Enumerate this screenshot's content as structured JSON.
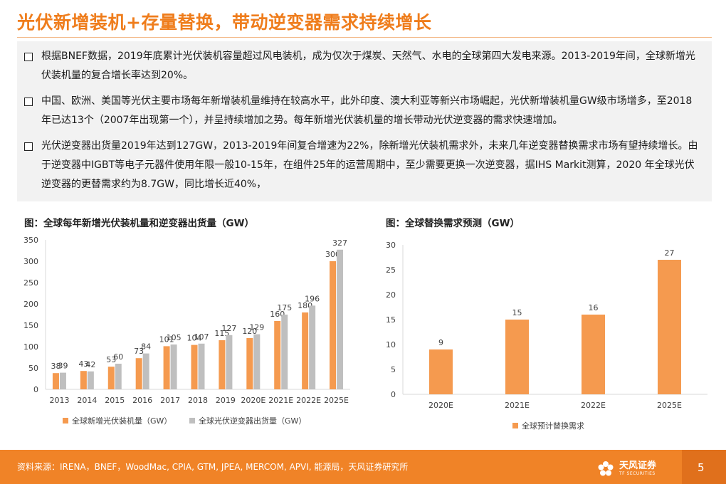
{
  "slide": {
    "title": "光伏新增装机+存量替换，带动逆变器需求持续增长",
    "bullets": [
      "根据BNEF数据，2019年底累计光伏装机容量超过风电装机，成为仅次于煤炭、天然气、水电的全球第四大发电来源。2013-2019年间，全球新增光伏装机量的复合增长率达到20%。",
      "中国、欧洲、美国等光伏主要市场每年新增装机量维持在较高水平，此外印度、澳大利亚等新兴市场崛起，光伏新增装机量GW级市场增多，至2018年已达13个（2007年出现第一个），并呈持续增加之势。每年新增光伏装机量的增长带动光伏逆变器的需求快速增加。",
      "光伏逆变器出货量2019年达到127GW，2013-2019年间复合增速为22%，除新增光伏装机需求外，未来几年逆变器替换需求市场有望持续增长。由于逆变器中IGBT等电子元器件使用年限一般10-15年，在组件25年的运营周期中，至少需要更换一次逆变器，据IHS Markit测算，2020 年全球光伏逆变器的更替需求约为8.7GW，同比增长近40%，"
    ],
    "source": "资料来源：IRENA，BNEF，WoodMac, CPIA, GTM, JPEA, MERCOM, APVI, 能源局，天风证券研究所",
    "logo_name": "天风证券",
    "logo_sub": "TF SECURITIES",
    "page_number": "5"
  },
  "colors": {
    "accent": "#ef7d1c",
    "series_orange": "#f59a4f",
    "series_gray": "#bfbfbf",
    "footer": "#f08327"
  },
  "chart_data": [
    {
      "type": "bar",
      "title": "图：全球每年新增光伏装机量和逆变器出货量（GW）",
      "categories": [
        "2013",
        "2014",
        "2015",
        "2016",
        "2017",
        "2018",
        "2019",
        "2020E",
        "2021E",
        "2022E",
        "2025E"
      ],
      "series": [
        {
          "name": "全球新增光伏装机量（GW）",
          "values": [
            38,
            43,
            53,
            73,
            101,
            104,
            115,
            120,
            160,
            180,
            300
          ],
          "labels": [
            "38",
            "43",
            "53",
            "73",
            "101",
            "104",
            "115",
            "120",
            "160",
            "180",
            "300"
          ]
        },
        {
          "name": "全球光伏逆变器出货量（GW）",
          "values": [
            39,
            42,
            60,
            84,
            105,
            107,
            127,
            129,
            175,
            196,
            327
          ],
          "labels": [
            "39",
            "42",
            "60",
            "84",
            "105",
            "107",
            "127",
            "129",
            "175",
            "196",
            "327"
          ]
        }
      ],
      "ylim": [
        0,
        350
      ],
      "yticks": [
        "0",
        "50",
        "100",
        "150",
        "200",
        "250",
        "300",
        "350"
      ],
      "grid": false,
      "legend": "bottom"
    },
    {
      "type": "bar",
      "title": "图：全球替换需求预测（GW）",
      "categories": [
        "2020E",
        "2021E",
        "2022E",
        "2025E"
      ],
      "series": [
        {
          "name": "全球预计替换需求",
          "values": [
            9,
            15,
            16,
            27
          ],
          "labels": [
            "9",
            "15",
            "16",
            "27"
          ]
        }
      ],
      "ylim": [
        0,
        30
      ],
      "yticks": [
        "0",
        "5",
        "10",
        "15",
        "20",
        "25",
        "30"
      ],
      "grid": false,
      "legend": "bottom"
    }
  ]
}
